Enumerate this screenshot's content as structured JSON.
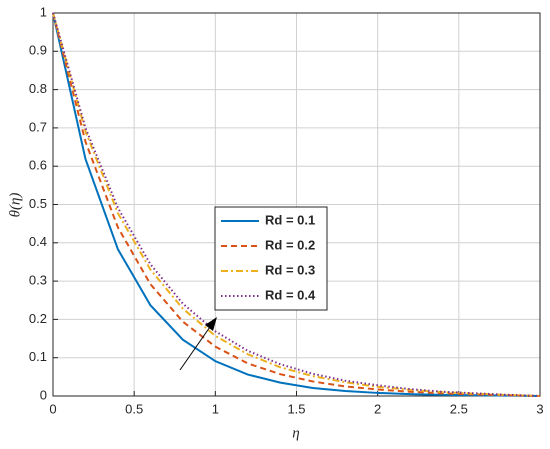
{
  "chart_data": {
    "type": "line",
    "xlabel": "η",
    "ylabel": "θ(η)",
    "x": [
      0,
      0.2,
      0.4,
      0.6,
      0.8,
      1,
      1.2,
      1.4,
      1.6,
      1.8,
      2,
      2.2,
      2.4,
      2.6,
      2.8,
      3
    ],
    "series": [
      {
        "name": "Rd = 0.1",
        "color": "#0072bd",
        "dash": "solid",
        "values": [
          1,
          0.619,
          0.383,
          0.237,
          0.147,
          0.091,
          0.056,
          0.035,
          0.021,
          0.013,
          0.008,
          0.005,
          0.003,
          0.002,
          0.001,
          0
        ]
      },
      {
        "name": "Rd = 0.2",
        "color": "#d95319",
        "dash": "dashed",
        "values": [
          1,
          0.664,
          0.44,
          0.292,
          0.194,
          0.129,
          0.085,
          0.057,
          0.038,
          0.025,
          0.017,
          0.011,
          0.007,
          0.004,
          0.002,
          0
        ]
      },
      {
        "name": "Rd = 0.3",
        "color": "#edb120",
        "dash": "dashdot",
        "values": [
          1,
          0.691,
          0.477,
          0.33,
          0.228,
          0.157,
          0.109,
          0.075,
          0.052,
          0.036,
          0.024,
          0.016,
          0.01,
          0.006,
          0.003,
          0
        ]
      },
      {
        "name": "Rd = 0.4",
        "color": "#7e2f8e",
        "dash": "dotted",
        "values": [
          1,
          0.7,
          0.491,
          0.344,
          0.241,
          0.169,
          0.118,
          0.083,
          0.058,
          0.04,
          0.028,
          0.018,
          0.011,
          0.007,
          0.003,
          0
        ]
      }
    ],
    "xlim": [
      0,
      3
    ],
    "xticks": [
      0,
      0.5,
      1,
      1.5,
      2,
      2.5,
      3
    ],
    "ylim": [
      0,
      1
    ],
    "yticks": [
      0,
      0.1,
      0.2,
      0.3,
      0.4,
      0.5,
      0.6,
      0.7,
      0.8,
      0.9,
      1
    ],
    "grid": true
  }
}
